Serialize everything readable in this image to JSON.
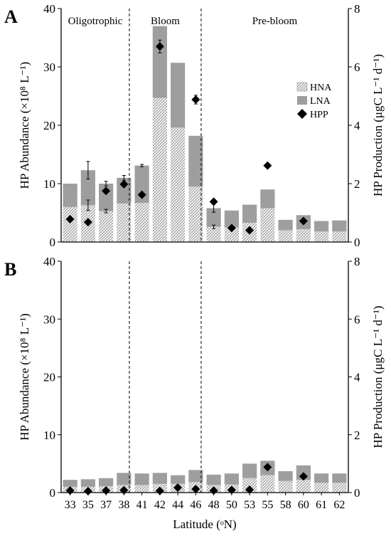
{
  "chart_data": [
    {
      "panel_label": "A",
      "type": "bar",
      "stacked": true,
      "categories": [
        "33",
        "35",
        "37",
        "38",
        "41",
        "42",
        "44",
        "46",
        "48",
        "50",
        "53",
        "55",
        "58",
        "60",
        "61",
        "62"
      ],
      "ylabel": "HP Abundance (×10⁸ L⁻¹)",
      "y2label": "HP Production (μgC L⁻¹ d⁻¹)",
      "ylim": [
        0,
        40
      ],
      "y2lim": [
        0,
        8
      ],
      "yticks": [
        0,
        10,
        20,
        30,
        40
      ],
      "y2ticks": [
        0,
        2,
        4,
        6,
        8
      ],
      "regions": [
        {
          "label": "Oligotrophic"
        },
        {
          "label": "Bloom"
        },
        {
          "label": "Pre-bloom"
        }
      ],
      "legend": {
        "position": "right",
        "entries": [
          "HNA",
          "LNA",
          "HPP"
        ]
      },
      "series": [
        {
          "name": "HNA",
          "values": [
            6.0,
            6.3,
            5.3,
            6.6,
            6.7,
            24.7,
            19.6,
            9.5,
            2.6,
            2.5,
            3.3,
            5.8,
            2.0,
            2.2,
            1.8,
            1.8
          ]
        },
        {
          "name": "LNA",
          "values": [
            4.0,
            6.0,
            4.7,
            4.4,
            6.4,
            12.3,
            11.1,
            8.7,
            3.2,
            2.9,
            3.1,
            3.2,
            1.8,
            2.4,
            1.8,
            1.9
          ]
        },
        {
          "name": "HPP",
          "axis": "right",
          "values": [
            0.78,
            0.68,
            1.75,
            1.98,
            1.62,
            6.7,
            null,
            4.88,
            1.38,
            0.48,
            0.4,
            2.62,
            null,
            0.72,
            null,
            null
          ]
        }
      ],
      "error_bars": {
        "HNA": [
          null,
          0.9,
          0.3,
          null,
          null,
          null,
          null,
          null,
          0.3,
          null,
          null,
          null,
          null,
          null,
          null,
          null
        ],
        "total": [
          null,
          1.5,
          0.4,
          0.4,
          0.2,
          null,
          null,
          null,
          0.7,
          null,
          null,
          null,
          null,
          null,
          null,
          null
        ],
        "HPP": [
          null,
          null,
          null,
          null,
          null,
          0.22,
          null,
          0.15,
          null,
          null,
          null,
          null,
          null,
          null,
          null,
          null
        ]
      }
    },
    {
      "panel_label": "B",
      "type": "bar",
      "stacked": true,
      "categories": [
        "33",
        "35",
        "37",
        "38",
        "41",
        "42",
        "44",
        "46",
        "48",
        "50",
        "53",
        "55",
        "58",
        "60",
        "61",
        "62"
      ],
      "xlabel": "Latitude (ᵒN)",
      "ylabel": "HP Abundance (×10⁸ L⁻¹)",
      "y2label": "HP Production (μgC L⁻¹ d⁻¹)",
      "ylim": [
        0,
        40
      ],
      "y2lim": [
        0,
        8
      ],
      "yticks": [
        0,
        10,
        20,
        30,
        40
      ],
      "y2ticks": [
        0,
        2,
        4,
        6,
        8
      ],
      "series": [
        {
          "name": "HNA",
          "values": [
            1.0,
            1.0,
            1.1,
            1.3,
            1.3,
            1.5,
            1.5,
            1.8,
            1.3,
            1.4,
            2.5,
            3.0,
            2.0,
            2.2,
            1.7,
            1.7
          ]
        },
        {
          "name": "LNA",
          "values": [
            1.2,
            1.3,
            1.4,
            2.1,
            2.0,
            1.9,
            1.5,
            2.1,
            1.8,
            1.9,
            2.5,
            2.5,
            1.7,
            2.5,
            1.6,
            1.6
          ]
        },
        {
          "name": "HPP",
          "axis": "right",
          "values": [
            0.07,
            0.05,
            0.07,
            0.08,
            null,
            0.06,
            0.17,
            0.12,
            0.07,
            0.09,
            0.1,
            0.88,
            null,
            0.56,
            null,
            null
          ]
        }
      ]
    }
  ]
}
